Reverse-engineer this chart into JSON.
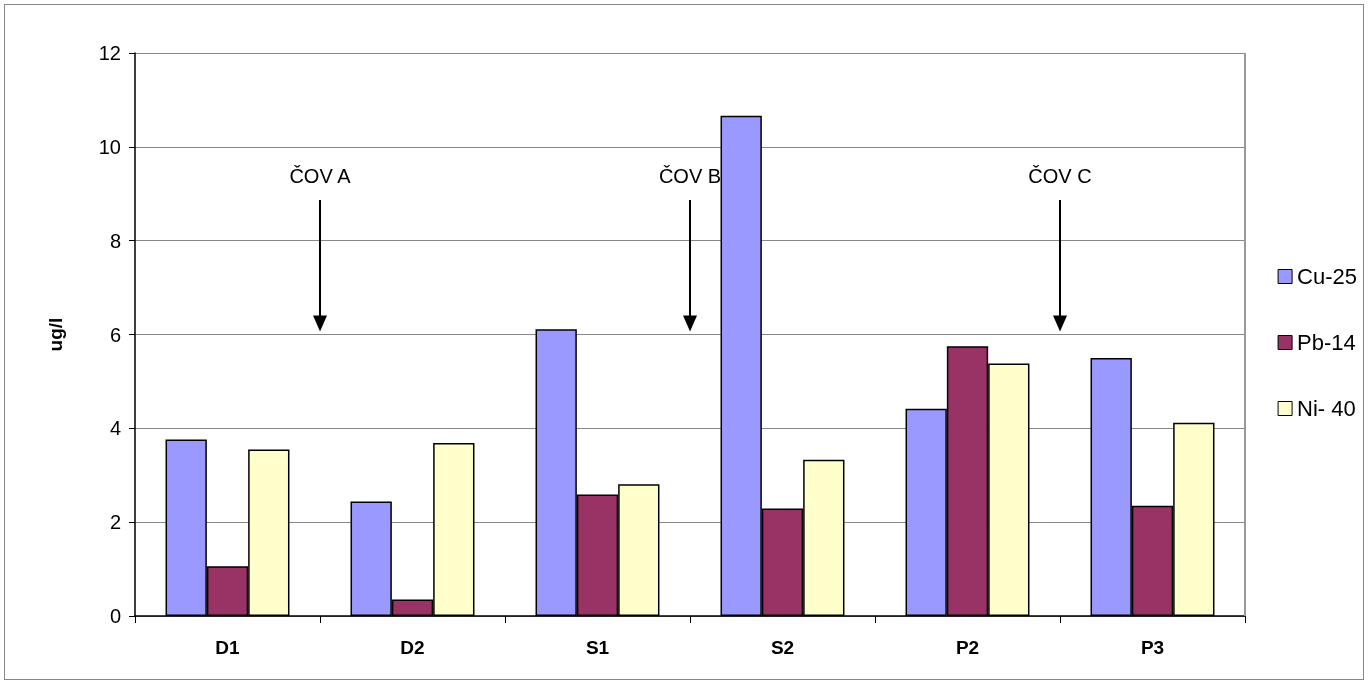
{
  "chart_data": {
    "type": "bar",
    "ylabel": "ug/l",
    "categories": [
      "D1",
      "D2",
      "S1",
      "S2",
      "P2",
      "P3"
    ],
    "series": [
      {
        "name": "Cu-25",
        "color": "#9999ff",
        "values": [
          3.76,
          2.44,
          6.11,
          10.66,
          4.42,
          5.5
        ]
      },
      {
        "name": "Pb-14",
        "color": "#993366",
        "values": [
          1.06,
          0.35,
          2.59,
          2.29,
          5.75,
          2.35
        ]
      },
      {
        "name": "Ni- 40",
        "color": "#ffffcc",
        "values": [
          3.55,
          3.69,
          2.81,
          3.33,
          5.38,
          4.12
        ]
      }
    ],
    "ylim": [
      0,
      12
    ],
    "yticks": [
      0,
      2,
      4,
      6,
      8,
      10,
      12
    ],
    "grid": "y",
    "legend": "right",
    "annotations": [
      "ČOV A",
      "ČOV B",
      "ČOV C"
    ]
  }
}
